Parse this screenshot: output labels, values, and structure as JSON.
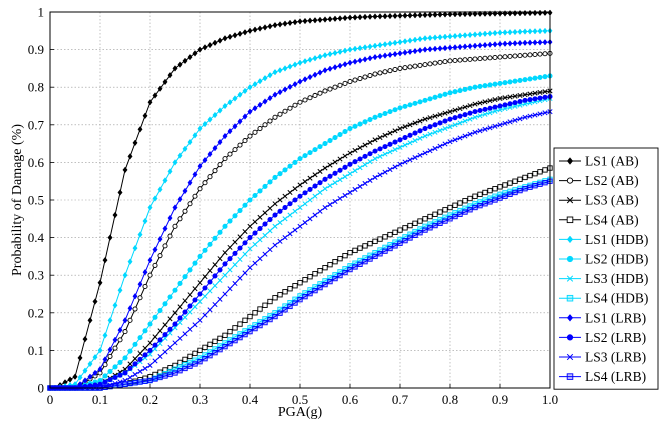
{
  "chart_data": {
    "type": "line",
    "title": "",
    "xlabel": "PGA(g)",
    "ylabel": "Probability of Damage (%)",
    "xlim": [
      0,
      1
    ],
    "ylim": [
      0,
      1
    ],
    "xticks": [
      "0",
      "0.1",
      "0.2",
      "0.3",
      "0.4",
      "0.5",
      "0.6",
      "0.7",
      "0.8",
      "0.9",
      "1.0"
    ],
    "yticks": [
      "0",
      "0.1",
      "0.2",
      "0.3",
      "0.4",
      "0.5",
      "0.6",
      "0.7",
      "0.8",
      "0.9",
      "1"
    ],
    "grid": true,
    "legend_position": "right",
    "x": [
      0.01,
      0.05,
      0.1,
      0.15,
      0.2,
      0.25,
      0.3,
      0.35,
      0.4,
      0.45,
      0.5,
      0.55,
      0.6,
      0.65,
      0.7,
      0.75,
      0.8,
      0.85,
      0.9,
      0.95,
      1.0
    ],
    "series": [
      {
        "name": "LS1 (AB)",
        "color": "#000000",
        "marker": "diamond",
        "values": [
          0.0,
          0.03,
          0.28,
          0.58,
          0.76,
          0.85,
          0.9,
          0.93,
          0.95,
          0.965,
          0.975,
          0.98,
          0.985,
          0.988,
          0.99,
          0.992,
          0.994,
          0.995,
          0.996,
          0.997,
          0.998
        ]
      },
      {
        "name": "LS2 (AB)",
        "color": "#000000",
        "marker": "circle",
        "values": [
          0.0,
          0.0,
          0.04,
          0.15,
          0.3,
          0.43,
          0.53,
          0.61,
          0.67,
          0.72,
          0.76,
          0.79,
          0.815,
          0.835,
          0.85,
          0.86,
          0.87,
          0.875,
          0.88,
          0.885,
          0.89
        ]
      },
      {
        "name": "LS3 (AB)",
        "color": "#000000",
        "marker": "x",
        "values": [
          0.0,
          0.0,
          0.01,
          0.05,
          0.12,
          0.2,
          0.28,
          0.36,
          0.43,
          0.49,
          0.54,
          0.585,
          0.625,
          0.66,
          0.69,
          0.715,
          0.735,
          0.755,
          0.77,
          0.78,
          0.79
        ]
      },
      {
        "name": "LS4 (AB)",
        "color": "#000000",
        "marker": "square",
        "values": [
          0.0,
          0.0,
          0.0,
          0.01,
          0.03,
          0.06,
          0.1,
          0.14,
          0.19,
          0.24,
          0.28,
          0.32,
          0.36,
          0.39,
          0.42,
          0.45,
          0.48,
          0.51,
          0.535,
          0.56,
          0.585
        ]
      },
      {
        "name": "LS1 (HDB)",
        "color": "#00d8ff",
        "marker": "diamond",
        "values": [
          0.0,
          0.01,
          0.1,
          0.3,
          0.48,
          0.6,
          0.69,
          0.75,
          0.8,
          0.84,
          0.865,
          0.885,
          0.9,
          0.91,
          0.92,
          0.93,
          0.935,
          0.94,
          0.945,
          0.948,
          0.95
        ]
      },
      {
        "name": "LS2 (HDB)",
        "color": "#00d8ff",
        "marker": "circle",
        "values": [
          0.0,
          0.0,
          0.02,
          0.08,
          0.17,
          0.26,
          0.35,
          0.43,
          0.5,
          0.56,
          0.61,
          0.65,
          0.69,
          0.72,
          0.745,
          0.765,
          0.785,
          0.8,
          0.81,
          0.82,
          0.83
        ]
      },
      {
        "name": "LS3 (HDB)",
        "color": "#00d8ff",
        "marker": "x",
        "values": [
          0.0,
          0.0,
          0.01,
          0.04,
          0.09,
          0.16,
          0.23,
          0.3,
          0.37,
          0.43,
          0.48,
          0.53,
          0.57,
          0.61,
          0.64,
          0.67,
          0.695,
          0.72,
          0.74,
          0.755,
          0.77
        ]
      },
      {
        "name": "LS4 (HDB)",
        "color": "#00d8ff",
        "marker": "square",
        "values": [
          0.0,
          0.0,
          0.0,
          0.01,
          0.02,
          0.05,
          0.08,
          0.12,
          0.16,
          0.2,
          0.245,
          0.285,
          0.325,
          0.36,
          0.395,
          0.43,
          0.46,
          0.49,
          0.515,
          0.535,
          0.555
        ]
      },
      {
        "name": "LS1 (LRB)",
        "color": "#0000ff",
        "marker": "diamond",
        "values": [
          0.0,
          0.0,
          0.05,
          0.18,
          0.34,
          0.48,
          0.59,
          0.67,
          0.735,
          0.78,
          0.815,
          0.845,
          0.865,
          0.88,
          0.89,
          0.9,
          0.905,
          0.91,
          0.915,
          0.918,
          0.92
        ]
      },
      {
        "name": "LS2 (LRB)",
        "color": "#0000ff",
        "marker": "circle",
        "values": [
          0.0,
          0.0,
          0.01,
          0.04,
          0.1,
          0.17,
          0.25,
          0.33,
          0.4,
          0.46,
          0.51,
          0.555,
          0.595,
          0.63,
          0.66,
          0.69,
          0.715,
          0.735,
          0.75,
          0.765,
          0.775
        ]
      },
      {
        "name": "LS3 (LRB)",
        "color": "#0000ff",
        "marker": "x",
        "values": [
          0.0,
          0.0,
          0.0,
          0.02,
          0.06,
          0.12,
          0.18,
          0.25,
          0.32,
          0.38,
          0.43,
          0.48,
          0.52,
          0.56,
          0.595,
          0.625,
          0.655,
          0.68,
          0.7,
          0.72,
          0.735
        ]
      },
      {
        "name": "LS4 (LRB)",
        "color": "#0000ff",
        "marker": "square",
        "values": [
          0.0,
          0.0,
          0.0,
          0.01,
          0.02,
          0.04,
          0.07,
          0.11,
          0.15,
          0.19,
          0.235,
          0.275,
          0.315,
          0.35,
          0.385,
          0.42,
          0.45,
          0.48,
          0.505,
          0.53,
          0.55
        ]
      }
    ]
  }
}
